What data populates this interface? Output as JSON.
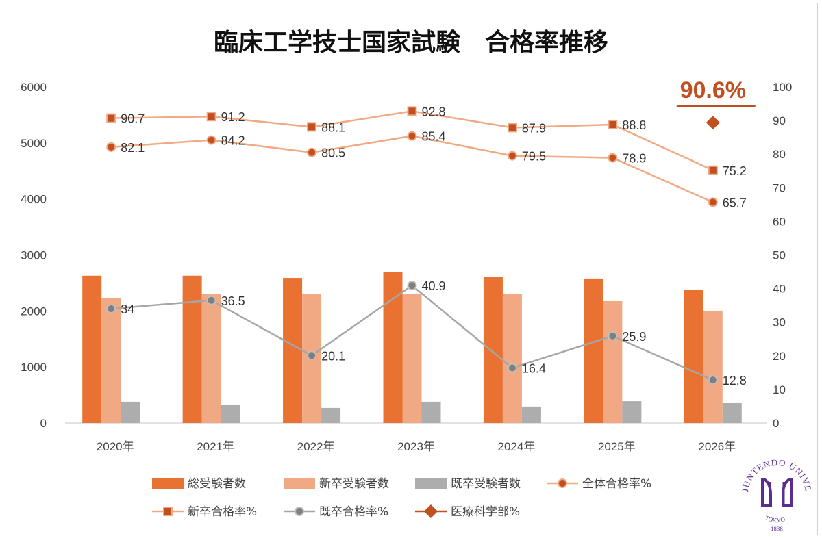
{
  "chart_data": {
    "type": "bar",
    "title": "臨床工学技士国家試験　合格率推移",
    "categories": [
      "2020年",
      "2021年",
      "2022年",
      "2023年",
      "2024年",
      "2025年",
      "2026年"
    ],
    "left_axis": {
      "ylim": [
        0,
        6000
      ],
      "ticks": [
        "0",
        "1000",
        "2000",
        "3000",
        "4000",
        "5000",
        "6000"
      ]
    },
    "right_axis": {
      "ylim": [
        0,
        100
      ],
      "ticks": [
        "0",
        "10",
        "20",
        "30",
        "40",
        "50",
        "60",
        "70",
        "80",
        "90",
        "100"
      ]
    },
    "grid": false,
    "legend_position": "bottom",
    "bar_series": [
      {
        "name": "総受験者数",
        "color": "#E97132",
        "values": [
          2630,
          2630,
          2590,
          2690,
          2615,
          2580,
          2380
        ]
      },
      {
        "name": "新卒受験者数",
        "color": "#F1A983",
        "values": [
          2225,
          2300,
          2300,
          2310,
          2300,
          2175,
          2005
        ]
      },
      {
        "name": "既卒受験者数",
        "color": "#ADADAD",
        "values": [
          380,
          330,
          270,
          380,
          295,
          390,
          355
        ]
      }
    ],
    "line_series": [
      {
        "name": "全体合格率%",
        "color": "#F1A983",
        "marker": "circle",
        "marker_color": "#C0501F",
        "values": [
          82.1,
          84.2,
          80.5,
          85.4,
          79.5,
          78.9,
          65.7
        ],
        "labels": [
          "82.1",
          "84.2",
          "80.5",
          "85.4",
          "79.5",
          "78.9",
          "65.7"
        ]
      },
      {
        "name": "新卒合格率%",
        "color": "#F1A983",
        "marker": "square",
        "marker_color": "#C0501F",
        "values": [
          90.7,
          91.2,
          88.1,
          92.8,
          87.9,
          88.8,
          75.2
        ],
        "labels": [
          "90.7",
          "91.2",
          "88.1",
          "92.8",
          "87.9",
          "88.8",
          "75.2"
        ]
      },
      {
        "name": "既卒合格率%",
        "color": "#A6A6A6",
        "marker": "circle",
        "marker_color": "#7F7F7F",
        "values": [
          34,
          36.5,
          20.1,
          40.9,
          16.4,
          25.9,
          12.8
        ],
        "labels": [
          "34",
          "36.5",
          "20.1",
          "40.9",
          "16.4",
          "25.9",
          "12.8"
        ]
      },
      {
        "name": "医療科学部%",
        "color": "#C0501F",
        "marker": "diamond",
        "marker_color": "#C0501F",
        "values": [
          null,
          null,
          null,
          null,
          null,
          null,
          90.6
        ],
        "labels": [
          null,
          null,
          null,
          null,
          null,
          null,
          "90.6%"
        ]
      }
    ]
  },
  "logo": {
    "text": "JUNTENDO UNIVERSITY",
    "sub": "TOKYO",
    "year": "1838",
    "color": "#5B2C91"
  }
}
